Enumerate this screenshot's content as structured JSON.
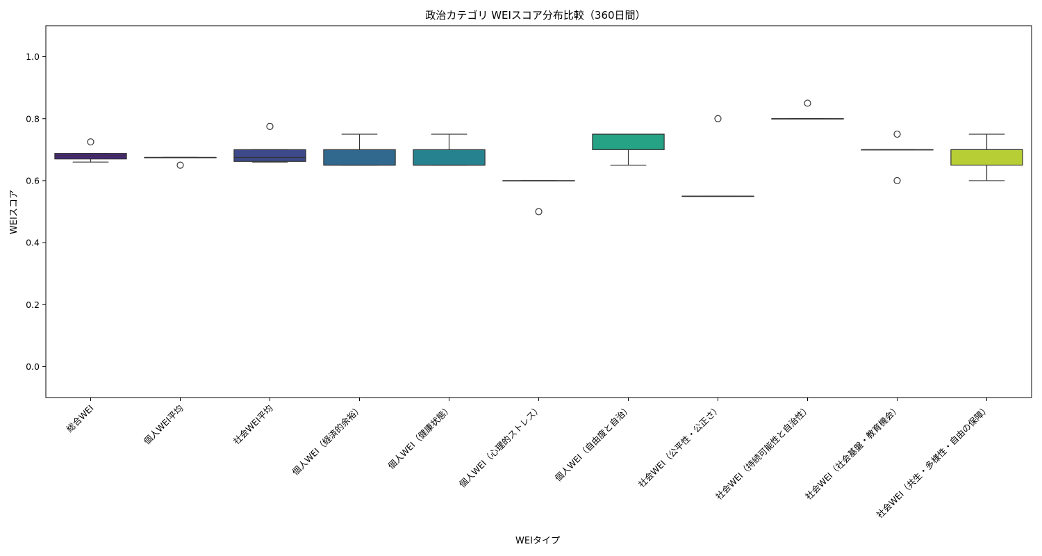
{
  "chart_data": {
    "type": "box",
    "title": "政治カテゴリ WEIスコア分布比較（360日間）",
    "xlabel": "WEIタイプ",
    "ylabel": "WEIスコア",
    "ylim": [
      -0.1,
      1.1
    ],
    "yticks": [
      0.0,
      0.2,
      0.4,
      0.6,
      0.8,
      1.0
    ],
    "ytick_labels": [
      "0.0",
      "0.2",
      "0.4",
      "0.6",
      "0.8",
      "1.0"
    ],
    "grid": false,
    "legend": "none",
    "categories": [
      "総合WEI",
      "個人WEI平均",
      "社会WEI平均",
      "個人WEI（経済的余裕）",
      "個人WEI（健康状態）",
      "個人WEI（心理的ストレス）",
      "個人WEI（自由度と自治）",
      "社会WEI（公平性・公正さ）",
      "社会WEI（持続可能性と自治性）",
      "社会WEI（社会基盤・教育機会）",
      "社会WEI（共生・多様性・自由の保障）"
    ],
    "boxes": [
      {
        "whisker_low": 0.66,
        "q1": 0.67,
        "median": 0.68,
        "q3": 0.688,
        "whisker_high": 0.688,
        "outliers": [
          0.725
        ],
        "color": "#482878"
      },
      {
        "whisker_low": 0.675,
        "q1": 0.675,
        "median": 0.675,
        "q3": 0.675,
        "whisker_high": 0.675,
        "outliers": [
          0.65
        ],
        "color": "#3e4989"
      },
      {
        "whisker_low": 0.66,
        "q1": 0.662,
        "median": 0.675,
        "q3": 0.7,
        "whisker_high": 0.7,
        "outliers": [
          0.775
        ],
        "color": "#3e4989"
      },
      {
        "whisker_low": 0.65,
        "q1": 0.65,
        "median": 0.65,
        "q3": 0.7,
        "whisker_high": 0.75,
        "outliers": [],
        "color": "#31688e"
      },
      {
        "whisker_low": 0.65,
        "q1": 0.65,
        "median": 0.65,
        "q3": 0.7,
        "whisker_high": 0.75,
        "outliers": [],
        "color": "#26828e"
      },
      {
        "whisker_low": 0.6,
        "q1": 0.6,
        "median": 0.6,
        "q3": 0.6,
        "whisker_high": 0.6,
        "outliers": [
          0.5
        ],
        "color": "#1f9e89"
      },
      {
        "whisker_low": 0.65,
        "q1": 0.7,
        "median": 0.75,
        "q3": 0.75,
        "whisker_high": 0.75,
        "outliers": [],
        "color": "#26a284"
      },
      {
        "whisker_low": 0.55,
        "q1": 0.55,
        "median": 0.55,
        "q3": 0.55,
        "whisker_high": 0.55,
        "outliers": [
          0.8
        ],
        "color": "#6ece58"
      },
      {
        "whisker_low": 0.8,
        "q1": 0.8,
        "median": 0.8,
        "q3": 0.8,
        "whisker_high": 0.8,
        "outliers": [
          0.85
        ],
        "color": "#b5de2b"
      },
      {
        "whisker_low": 0.7,
        "q1": 0.7,
        "median": 0.7,
        "q3": 0.7,
        "whisker_high": 0.7,
        "outliers": [
          0.75,
          0.6
        ],
        "color": "#b5de2b"
      },
      {
        "whisker_low": 0.6,
        "q1": 0.65,
        "median": 0.7,
        "q3": 0.7,
        "whisker_high": 0.75,
        "outliers": [],
        "color": "#b7cf35"
      }
    ]
  }
}
